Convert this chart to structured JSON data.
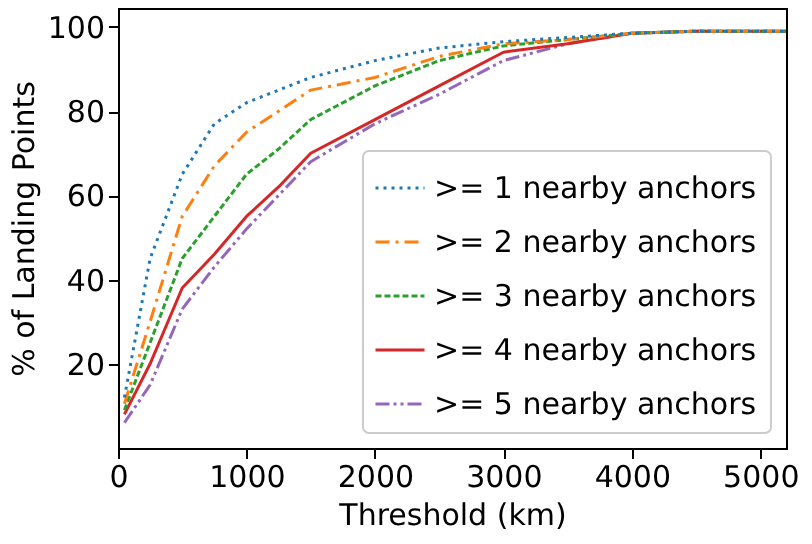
{
  "chart_data": {
    "type": "line",
    "xlabel": "Threshold (km)",
    "ylabel": "% of Landing Points",
    "x": [
      50,
      250,
      500,
      750,
      1000,
      1250,
      1500,
      2000,
      2500,
      3000,
      3500,
      4000,
      4500,
      5200
    ],
    "series": [
      {
        "name": ">= 1 nearby anchors",
        "color": "#1f77b4",
        "line_style": "dotted",
        "values": [
          12,
          45,
          65,
          77,
          82,
          85,
          88,
          92,
          95,
          96.5,
          97.5,
          98.5,
          99,
          99
        ]
      },
      {
        "name": ">= 2 nearby anchors",
        "color": "#ff7f0e",
        "line_style": "dashdot",
        "values": [
          10.5,
          30,
          55,
          67,
          75,
          80,
          85,
          88,
          93,
          96,
          97,
          98.5,
          99,
          99
        ]
      },
      {
        "name": ">= 3 nearby anchors",
        "color": "#2ca02c",
        "line_style": "dashed",
        "values": [
          9,
          25,
          45,
          55,
          65,
          71,
          78,
          86,
          92,
          95.5,
          97,
          98.5,
          99,
          99
        ]
      },
      {
        "name": ">= 4 nearby anchors",
        "color": "#d62728",
        "line_style": "solid",
        "values": [
          8,
          20,
          38,
          46,
          55,
          62,
          70,
          78,
          86,
          94,
          96,
          98.5,
          99,
          99
        ]
      },
      {
        "name": ">= 5 nearby anchors",
        "color": "#9467bd",
        "line_style": "dashdotdot",
        "values": [
          6,
          15,
          33,
          43,
          52,
          60,
          68,
          77,
          84,
          92,
          96,
          98.5,
          99,
          99
        ]
      }
    ],
    "xlim": [
      0,
      5200
    ],
    "ylim": [
      0,
      104.5
    ],
    "xticks": [
      0,
      1000,
      2000,
      3000,
      4000,
      5000
    ],
    "yticks": [
      20,
      40,
      60,
      80,
      100
    ],
    "grid": false,
    "legend": "bottom right",
    "marker": "none"
  }
}
